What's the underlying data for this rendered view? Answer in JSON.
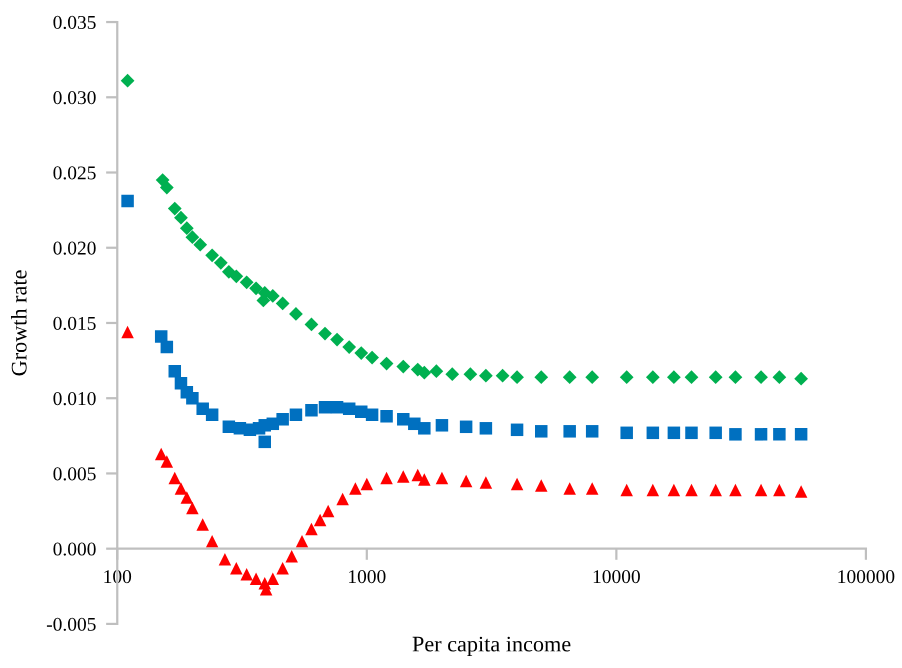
{
  "chart_data": {
    "type": "scatter",
    "xlabel": "Per capita income",
    "ylabel": "Growth rate",
    "log": "x",
    "grid": false,
    "xlim": [
      100,
      100000
    ],
    "xticks": [
      100,
      1000,
      10000,
      100000
    ],
    "ylim": [
      -0.005,
      0.035
    ],
    "yticks": [
      {
        "value": -0.005,
        "label": "-0.005"
      },
      {
        "value": 0.0,
        "label": "0.000"
      },
      {
        "value": 0.005,
        "label": "0.005"
      },
      {
        "value": 0.01,
        "label": "0.010"
      },
      {
        "value": 0.015,
        "label": "0.015"
      },
      {
        "value": 0.02,
        "label": "0.020"
      },
      {
        "value": 0.025,
        "label": "0.025"
      },
      {
        "value": 0.03,
        "label": "0.030"
      },
      {
        "value": 0.035,
        "label": "0.035"
      }
    ],
    "series": [
      {
        "color": "#00b050",
        "marker": "diamond",
        "x": [
          110,
          152,
          158,
          170,
          180,
          190,
          200,
          215,
          240,
          260,
          280,
          300,
          330,
          360,
          390,
          385,
          420,
          460,
          520,
          600,
          680,
          760,
          850,
          950,
          1050,
          1200,
          1400,
          1600,
          1700,
          1900,
          2200,
          2600,
          3000,
          3500,
          4000,
          5000,
          6500,
          8000,
          11000,
          14000,
          17000,
          20000,
          25000,
          30000,
          38000,
          45000,
          55000
        ],
        "values": [
          0.0311,
          0.0245,
          0.024,
          0.0226,
          0.022,
          0.0213,
          0.0207,
          0.0202,
          0.0195,
          0.019,
          0.0184,
          0.0181,
          0.0177,
          0.0173,
          0.017,
          0.0165,
          0.0168,
          0.0163,
          0.0156,
          0.0149,
          0.0143,
          0.0139,
          0.0134,
          0.013,
          0.0127,
          0.0123,
          0.0121,
          0.0119,
          0.0117,
          0.0118,
          0.0116,
          0.0116,
          0.0115,
          0.0115,
          0.0114,
          0.0114,
          0.0114,
          0.0114,
          0.0114,
          0.0114,
          0.0114,
          0.0114,
          0.0114,
          0.0114,
          0.0114,
          0.0114,
          0.0113
        ]
      },
      {
        "color": "#0070c0",
        "marker": "square",
        "x": [
          110,
          150,
          158,
          170,
          180,
          190,
          200,
          220,
          240,
          280,
          310,
          340,
          370,
          390,
          390,
          420,
          460,
          520,
          600,
          680,
          760,
          850,
          950,
          1050,
          1200,
          1400,
          1550,
          1700,
          2000,
          2500,
          3000,
          4000,
          5000,
          6500,
          8000,
          11000,
          14000,
          17000,
          20000,
          25000,
          30000,
          38000,
          45000,
          55000
        ],
        "values": [
          0.0231,
          0.0141,
          0.0134,
          0.0118,
          0.011,
          0.0104,
          0.01,
          0.0093,
          0.0089,
          0.0081,
          0.008,
          0.0079,
          0.008,
          0.0082,
          0.0071,
          0.0083,
          0.0086,
          0.0089,
          0.0092,
          0.0094,
          0.0094,
          0.0093,
          0.0091,
          0.0089,
          0.0088,
          0.0086,
          0.0083,
          0.008,
          0.0082,
          0.0081,
          0.008,
          0.0079,
          0.0078,
          0.0078,
          0.0078,
          0.0077,
          0.0077,
          0.0077,
          0.0077,
          0.0077,
          0.0076,
          0.0076,
          0.0076,
          0.0076
        ]
      },
      {
        "color": "#ff0000",
        "marker": "triangle",
        "x": [
          110,
          150,
          158,
          170,
          180,
          190,
          200,
          220,
          240,
          270,
          300,
          330,
          360,
          390,
          395,
          420,
          460,
          500,
          550,
          600,
          650,
          700,
          800,
          900,
          1000,
          1200,
          1400,
          1600,
          1700,
          2000,
          2500,
          3000,
          4000,
          5000,
          6500,
          8000,
          11000,
          14000,
          17000,
          20000,
          25000,
          30000,
          38000,
          45000,
          55000
        ],
        "values": [
          0.0144,
          0.0063,
          0.0058,
          0.0047,
          0.004,
          0.0034,
          0.0027,
          0.0016,
          0.0005,
          -0.0007,
          -0.0013,
          -0.0017,
          -0.002,
          -0.0023,
          -0.0027,
          -0.002,
          -0.0013,
          -0.0005,
          0.0005,
          0.0013,
          0.0019,
          0.0025,
          0.0033,
          0.004,
          0.0043,
          0.0047,
          0.0048,
          0.0049,
          0.0046,
          0.0047,
          0.0045,
          0.0044,
          0.0043,
          0.0042,
          0.004,
          0.004,
          0.0039,
          0.0039,
          0.0039,
          0.0039,
          0.0039,
          0.0039,
          0.0039,
          0.0039,
          0.0038
        ]
      }
    ]
  }
}
